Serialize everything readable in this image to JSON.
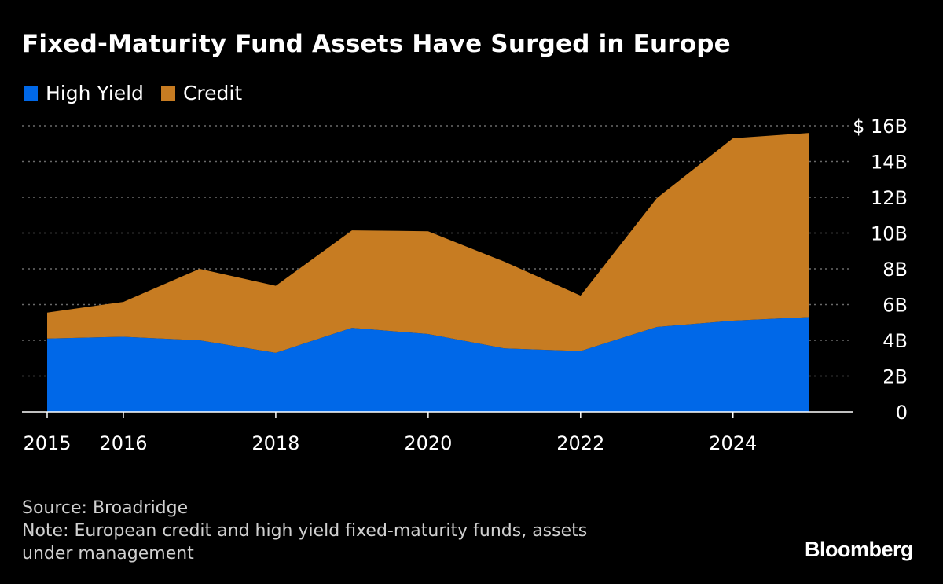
{
  "title": "Fixed-Maturity Fund Assets Have Surged in Europe",
  "colors": {
    "high_yield": "#0068e8",
    "credit": "#c77c22",
    "grid": "#6a6a6a",
    "text": "#ffffff"
  },
  "legend": [
    {
      "name": "High Yield",
      "color": "#0068e8"
    },
    {
      "name": "Credit",
      "color": "#c77c22"
    }
  ],
  "footer": {
    "source": "Source: Broadridge",
    "note_line1": "Note: European credit and high yield fixed-maturity funds, assets",
    "note_line2": "under management"
  },
  "brand": "Bloomberg",
  "chart_data": {
    "type": "area",
    "stacked": true,
    "x": [
      2015,
      2016,
      2017,
      2018,
      2019,
      2020,
      2021,
      2022,
      2023,
      2024,
      2025
    ],
    "series": [
      {
        "name": "High Yield",
        "color": "#0068e8",
        "values": [
          4.1,
          4.2,
          4.0,
          3.3,
          4.7,
          4.35,
          3.55,
          3.4,
          4.75,
          5.1,
          5.3
        ]
      },
      {
        "name": "Credit",
        "color": "#c77c22",
        "values": [
          1.45,
          1.95,
          4.0,
          3.75,
          5.45,
          5.75,
          4.85,
          3.1,
          7.2,
          10.2,
          10.3
        ]
      }
    ],
    "x_ticks": [
      2015,
      2016,
      2018,
      2020,
      2022,
      2024
    ],
    "x_tick_labels": [
      "2015",
      "2016",
      "2018",
      "2020",
      "2022",
      "2024"
    ],
    "y_ticks": [
      0,
      2,
      4,
      6,
      8,
      10,
      12,
      14,
      16
    ],
    "y_tick_labels": [
      "0",
      "2B",
      "4B",
      "6B",
      "8B",
      "10B",
      "12B",
      "14B",
      "$ 16B"
    ],
    "ylim": [
      0,
      16
    ],
    "y_axis_side": "right",
    "grid": true,
    "legend_position": "top-left",
    "xlabel": "",
    "ylabel": ""
  }
}
